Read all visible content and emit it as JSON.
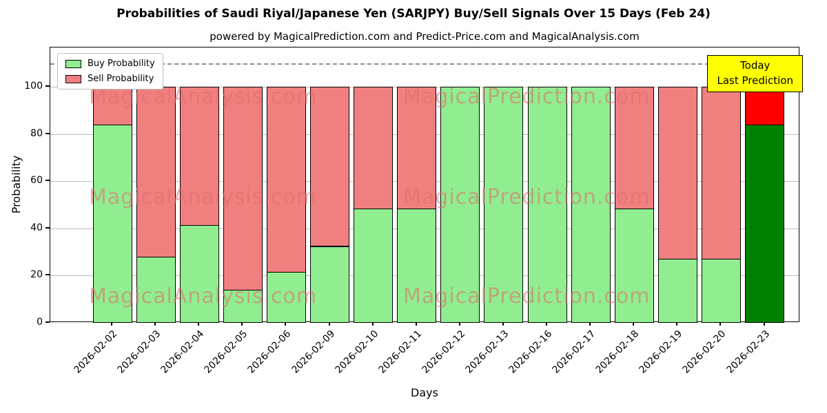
{
  "title": "Probabilities of Saudi Riyal/Japanese Yen (SARJPY) Buy/Sell Signals Over 15 Days (Feb 24)",
  "subtitle": "powered by MagicalPrediction.com and Predict-Price.com and MagicalAnalysis.com",
  "chart_data": {
    "type": "bar",
    "stacked": true,
    "xlabel": "Days",
    "ylabel": "Probability",
    "ylim": [
      0,
      116.6
    ],
    "yticks": [
      0,
      20,
      40,
      60,
      80,
      100
    ],
    "grid": true,
    "dashed_line_y": 110,
    "legend_position": "upper-left",
    "categories": [
      "2026-02-02",
      "2026-02-03",
      "2026-02-04",
      "2026-02-05",
      "2026-02-06",
      "2026-02-09",
      "2026-02-10",
      "2026-02-11",
      "2026-02-12",
      "2026-02-13",
      "2026-02-16",
      "2026-02-17",
      "2026-02-18",
      "2026-02-19",
      "2026-02-20",
      "2026-02-23"
    ],
    "series": [
      {
        "name": "Buy Probability",
        "color": "#90EE90",
        "values": [
          84,
          28,
          41.5,
          14,
          21.5,
          32.5,
          48.5,
          48.5,
          100,
          100,
          100,
          100,
          48.5,
          27,
          27,
          84
        ]
      },
      {
        "name": "Sell Probability",
        "color": "#F08080",
        "values": [
          16,
          72,
          58.5,
          86,
          78.5,
          67.5,
          51.5,
          51.5,
          0,
          0,
          0,
          0,
          51.5,
          73,
          73,
          16
        ]
      }
    ],
    "today_bar": {
      "index": 15,
      "buy_color": "#008000",
      "sell_color": "#FF0000"
    },
    "annotation": {
      "line1": "Today",
      "line2": "Last Prediction",
      "bg": "#FFFF00"
    },
    "watermarks": [
      "MagicalAnalysis.com",
      "MagicalPrediction.com"
    ]
  }
}
